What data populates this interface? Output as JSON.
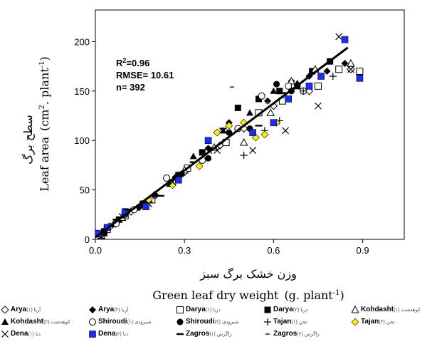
{
  "chart_data": {
    "type": "scatter",
    "xlabel_fa": "وزن خشک برگ سبز",
    "xlabel_en": "Green leaf dry weight",
    "xlabel_unit_main": "(g. plant",
    "xlabel_unit_sup": "-1",
    "xlabel_unit_end": ")",
    "ylabel_fa": "سطح برگ",
    "ylabel_en": "Leaf area",
    "ylabel_unit_main": "(cm",
    "ylabel_unit_sup1": "2",
    "ylabel_unit_mid": ". plant",
    "ylabel_unit_sup2": "-1",
    "ylabel_unit_end": ")",
    "xlim": [
      0,
      1.04
    ],
    "ylim": [
      0,
      232
    ],
    "xticks": [
      0.0,
      0.3,
      0.6,
      0.9
    ],
    "xtick_labels": [
      "0.0",
      "0.3",
      "0.6",
      "0.9"
    ],
    "yticks": [
      0,
      50,
      100,
      150,
      200
    ],
    "ytick_labels": [
      "0",
      "50",
      "100",
      "150",
      "200"
    ],
    "stats": {
      "r2_label": "R",
      "r2_sup": "2",
      "r2_value": "=0.96",
      "rmse": "RMSE= 10.61",
      "n": "n= 392"
    },
    "regression_line": {
      "x": [
        0.0,
        0.85
      ],
      "y": [
        2,
        194
      ]
    },
    "series": [
      {
        "name": "Arya",
        "name_fa": "(۱) آریا",
        "marker": "diamond-open",
        "points": [
          [
            0.02,
            5
          ],
          [
            0.05,
            13
          ],
          [
            0.12,
            28
          ],
          [
            0.2,
            45
          ],
          [
            0.3,
            68
          ],
          [
            0.42,
            95
          ],
          [
            0.5,
            112
          ],
          [
            0.6,
            135
          ],
          [
            0.72,
            150
          ],
          [
            0.86,
            172
          ]
        ]
      },
      {
        "name": "Arya",
        "name_fa": "(۲) آریا",
        "marker": "diamond-filled",
        "points": [
          [
            0.03,
            7
          ],
          [
            0.07,
            18
          ],
          [
            0.15,
            33
          ],
          [
            0.27,
            63
          ],
          [
            0.38,
            92
          ],
          [
            0.45,
            118
          ],
          [
            0.58,
            140
          ],
          [
            0.66,
            160
          ],
          [
            0.72,
            165
          ],
          [
            0.78,
            170
          ],
          [
            0.84,
            178
          ]
        ]
      },
      {
        "name": "Darya",
        "name_fa": "(۱) دریا",
        "marker": "square-open",
        "points": [
          [
            0.04,
            10
          ],
          [
            0.1,
            24
          ],
          [
            0.19,
            40
          ],
          [
            0.31,
            72
          ],
          [
            0.44,
            98
          ],
          [
            0.55,
            128
          ],
          [
            0.63,
            140
          ],
          [
            0.75,
            155
          ],
          [
            0.82,
            172
          ],
          [
            0.89,
            170
          ]
        ]
      },
      {
        "name": "Darya",
        "name_fa": "(۲) دریا",
        "marker": "square-filled",
        "points": [
          [
            0.03,
            8
          ],
          [
            0.08,
            20
          ],
          [
            0.16,
            36
          ],
          [
            0.28,
            65
          ],
          [
            0.36,
            88
          ],
          [
            0.48,
            133
          ],
          [
            0.55,
            142
          ],
          [
            0.62,
            150
          ],
          [
            0.68,
            155
          ],
          [
            0.73,
            170
          ],
          [
            0.79,
            180
          ]
        ]
      },
      {
        "name": "Kohdasht",
        "name_fa": "(۱) کوهدشت",
        "marker": "triangle-open",
        "points": [
          [
            0.02,
            4
          ],
          [
            0.09,
            22
          ],
          [
            0.18,
            40
          ],
          [
            0.3,
            70
          ],
          [
            0.4,
            93
          ],
          [
            0.5,
            98
          ],
          [
            0.59,
            128
          ],
          [
            0.66,
            160
          ],
          [
            0.74,
            172
          ],
          [
            0.86,
            178
          ]
        ]
      },
      {
        "name": "Kohdasht",
        "name_fa": "(۲) کوهدشت",
        "marker": "triangle-filled",
        "points": [
          [
            0.03,
            6
          ],
          [
            0.06,
            15
          ],
          [
            0.14,
            32
          ],
          [
            0.25,
            56
          ],
          [
            0.33,
            84
          ],
          [
            0.43,
            110
          ],
          [
            0.52,
            128
          ],
          [
            0.6,
            150
          ],
          [
            0.68,
            158
          ]
        ]
      },
      {
        "name": "Shiroudi",
        "name_fa": "(۱) شیرودی",
        "marker": "circle-open",
        "points": [
          [
            0.02,
            5
          ],
          [
            0.07,
            16
          ],
          [
            0.13,
            30
          ],
          [
            0.24,
            62
          ],
          [
            0.36,
            80
          ],
          [
            0.48,
            112
          ],
          [
            0.56,
            145
          ],
          [
            0.65,
            155
          ],
          [
            0.7,
            150
          ]
        ]
      },
      {
        "name": "Shiroudi",
        "name_fa": "(۲) شیرودی",
        "marker": "circle-filled",
        "points": [
          [
            0.03,
            7
          ],
          [
            0.1,
            25
          ],
          [
            0.2,
            44
          ],
          [
            0.29,
            66
          ],
          [
            0.38,
            82
          ],
          [
            0.45,
            108
          ],
          [
            0.52,
            112
          ],
          [
            0.61,
            157
          ],
          [
            0.66,
            150
          ]
        ]
      },
      {
        "name": "Tajan",
        "name_fa": "(۱) تجن",
        "marker": "plus",
        "points": [
          [
            0.02,
            4
          ],
          [
            0.08,
            19
          ],
          [
            0.17,
            38
          ],
          [
            0.26,
            60
          ],
          [
            0.39,
            90
          ],
          [
            0.5,
            85
          ],
          [
            0.57,
            110
          ],
          [
            0.62,
            120
          ],
          [
            0.7,
            150
          ],
          [
            0.8,
            165
          ]
        ]
      },
      {
        "name": "Tajan",
        "name_fa": "(۲) تجن",
        "marker": "diamond-yellow",
        "points": [
          [
            0.1,
            26
          ],
          [
            0.18,
            40
          ],
          [
            0.26,
            55
          ],
          [
            0.35,
            74
          ],
          [
            0.41,
            108
          ],
          [
            0.45,
            115
          ],
          [
            0.5,
            118
          ],
          [
            0.54,
            103
          ],
          [
            0.57,
            106
          ],
          [
            0.61,
            118
          ]
        ]
      },
      {
        "name": "Dena",
        "name_fa": "(۱) دنا",
        "marker": "x",
        "points": [
          [
            0.02,
            3
          ],
          [
            0.09,
            23
          ],
          [
            0.18,
            36
          ],
          [
            0.26,
            58
          ],
          [
            0.41,
            90
          ],
          [
            0.53,
            90
          ],
          [
            0.64,
            110
          ],
          [
            0.75,
            135
          ],
          [
            0.82,
            205
          ],
          [
            0.86,
            172
          ]
        ]
      },
      {
        "name": "Dena",
        "name_fa": "(۲) دنا",
        "marker": "square-blue",
        "points": [
          [
            0.01,
            6
          ],
          [
            0.04,
            12
          ],
          [
            0.1,
            28
          ],
          [
            0.17,
            33
          ],
          [
            0.28,
            60
          ],
          [
            0.38,
            100
          ],
          [
            0.53,
            108
          ],
          [
            0.6,
            118
          ],
          [
            0.65,
            142
          ],
          [
            0.72,
            155
          ],
          [
            0.76,
            165
          ],
          [
            0.84,
            202
          ],
          [
            0.89,
            163
          ]
        ]
      },
      {
        "name": "Zagros",
        "name_fa": "(۱) زاگرس",
        "marker": "dash",
        "points": [
          [
            0.07,
            20
          ],
          [
            0.11,
            30
          ],
          [
            0.22,
            44
          ],
          [
            0.33,
            78
          ],
          [
            0.43,
            112
          ],
          [
            0.55,
            115
          ],
          [
            0.63,
            148
          ]
        ]
      },
      {
        "name": "Zagros",
        "name_fa": "(۲) زاگرس",
        "marker": "small-dash",
        "points": [
          [
            0.05,
            16
          ],
          [
            0.2,
            42
          ],
          [
            0.46,
            154
          ],
          [
            0.58,
            138
          ]
        ]
      }
    ],
    "grid": false,
    "legend_position": "bottom"
  }
}
